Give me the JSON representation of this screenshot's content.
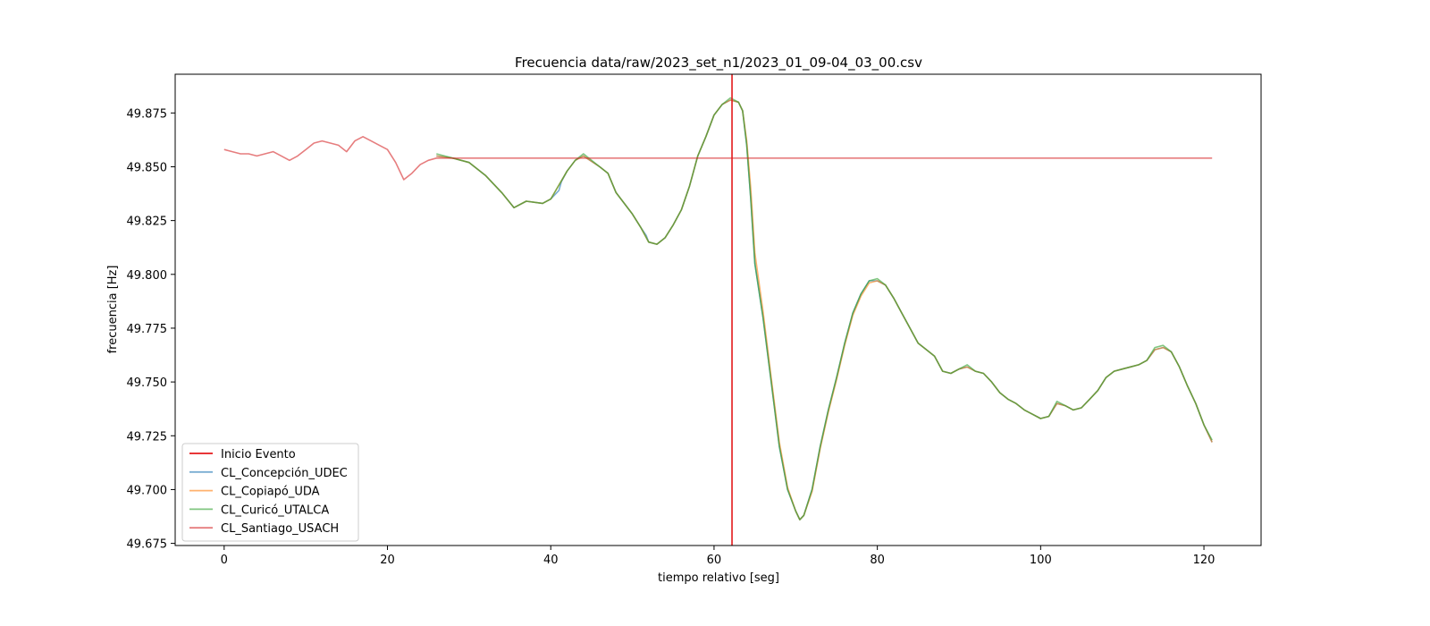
{
  "chart_data": {
    "type": "line",
    "title": "Frecuencia data/raw/2023_set_n1/2023_01_09-04_03_00.csv",
    "xlabel": "tiempo relativo [seg]",
    "ylabel": "frecuencia [Hz]",
    "xlim": [
      -6,
      127
    ],
    "ylim": [
      49.674,
      49.893
    ],
    "xticks": [
      0,
      20,
      40,
      60,
      80,
      100,
      120
    ],
    "yticks": [
      49.675,
      49.7,
      49.725,
      49.75,
      49.775,
      49.8,
      49.825,
      49.85,
      49.875
    ],
    "xtick_labels": [
      "0",
      "20",
      "40",
      "60",
      "80",
      "100",
      "120"
    ],
    "ytick_labels": [
      "49.675",
      "49.700",
      "49.725",
      "49.750",
      "49.775",
      "49.800",
      "49.825",
      "49.850",
      "49.875"
    ],
    "grid": false,
    "legend_position": "lower-left",
    "event": {
      "name": "Inicio Evento",
      "x": 62.2,
      "color": "#e41a1c"
    },
    "series": [
      {
        "name": "CL_Concepción_UDEC",
        "color": "#1f77b4",
        "x": [
          26,
          28,
          30,
          32,
          34,
          35.5,
          37,
          39,
          40,
          41,
          41.3,
          42,
          43,
          44,
          46,
          47,
          48,
          50,
          51,
          51.7,
          52,
          53,
          54,
          55,
          56,
          57,
          58,
          59,
          60,
          61,
          62,
          63,
          63.5,
          64,
          64.5,
          65,
          66,
          67,
          68,
          69,
          70,
          70.5,
          71,
          72,
          73,
          74,
          75,
          76,
          77,
          78,
          79,
          80,
          81,
          82,
          83,
          84,
          85,
          86,
          87,
          88,
          89,
          90,
          91,
          92,
          93,
          94,
          95,
          96,
          97,
          98,
          99,
          100,
          101,
          102,
          103,
          104,
          105,
          106,
          107,
          108,
          109,
          110,
          111,
          112,
          113,
          114,
          115,
          116,
          117,
          118,
          119,
          120,
          121
        ],
        "y": [
          49.855,
          49.854,
          49.852,
          49.846,
          49.838,
          49.831,
          49.834,
          49.833,
          49.835,
          49.839,
          49.843,
          49.848,
          49.853,
          49.855,
          49.85,
          49.847,
          49.838,
          49.828,
          49.822,
          49.818,
          49.815,
          49.814,
          49.817,
          49.823,
          49.83,
          49.841,
          49.855,
          49.864,
          49.874,
          49.879,
          49.881,
          49.88,
          49.876,
          49.86,
          49.835,
          49.805,
          49.78,
          49.75,
          49.72,
          49.7,
          49.69,
          49.686,
          49.688,
          49.7,
          49.72,
          49.737,
          49.752,
          49.768,
          49.782,
          49.791,
          49.797,
          49.797,
          49.795,
          49.789,
          49.782,
          49.775,
          49.768,
          49.765,
          49.762,
          49.755,
          49.754,
          49.756,
          49.757,
          49.755,
          49.754,
          49.75,
          49.745,
          49.742,
          49.74,
          49.737,
          49.735,
          49.733,
          49.734,
          49.74,
          49.739,
          49.737,
          49.738,
          49.742,
          49.746,
          49.752,
          49.755,
          49.756,
          49.757,
          49.758,
          49.76,
          49.765,
          49.766,
          49.764,
          49.757,
          49.748,
          49.74,
          49.73,
          49.722
        ]
      },
      {
        "name": "CL_Copiapó_UDA",
        "color": "#ff7f0e",
        "x": [
          26,
          28,
          30,
          32,
          34,
          35.5,
          37,
          39,
          40,
          42,
          43,
          44,
          46,
          47,
          48,
          50,
          51,
          52,
          53,
          54,
          55,
          56,
          57,
          58,
          59,
          60,
          61,
          62,
          63,
          63.5,
          64,
          64.5,
          65,
          66,
          67,
          68,
          69,
          70,
          70.5,
          71,
          72,
          73,
          74,
          75,
          76,
          77,
          78,
          79,
          80,
          81,
          82,
          83,
          84,
          85,
          86,
          87,
          88,
          89,
          90,
          91,
          92,
          93,
          94,
          95,
          96,
          97,
          98,
          99,
          100,
          101,
          102,
          103,
          104,
          105,
          106,
          107,
          108,
          109,
          110,
          111,
          112,
          113,
          114,
          115,
          116,
          117,
          118,
          119,
          120,
          121
        ],
        "y": [
          49.855,
          49.854,
          49.852,
          49.846,
          49.838,
          49.831,
          49.834,
          49.833,
          49.835,
          49.848,
          49.853,
          49.855,
          49.85,
          49.847,
          49.838,
          49.828,
          49.822,
          49.815,
          49.814,
          49.817,
          49.823,
          49.83,
          49.841,
          49.855,
          49.864,
          49.874,
          49.879,
          49.881,
          49.88,
          49.876,
          49.862,
          49.84,
          49.81,
          49.783,
          49.752,
          49.722,
          49.701,
          49.69,
          49.686,
          49.688,
          49.699,
          49.719,
          49.736,
          49.751,
          49.767,
          49.781,
          49.79,
          49.796,
          49.797,
          49.795,
          49.789,
          49.782,
          49.775,
          49.768,
          49.765,
          49.762,
          49.755,
          49.754,
          49.756,
          49.757,
          49.755,
          49.754,
          49.75,
          49.745,
          49.742,
          49.74,
          49.737,
          49.735,
          49.733,
          49.734,
          49.74,
          49.739,
          49.737,
          49.738,
          49.742,
          49.746,
          49.752,
          49.755,
          49.756,
          49.757,
          49.758,
          49.76,
          49.765,
          49.766,
          49.764,
          49.757,
          49.748,
          49.74,
          49.73,
          49.722
        ]
      },
      {
        "name": "CL_Curicó_UTALCA",
        "color": "#2ca02c",
        "x": [
          26,
          28,
          30,
          32,
          34,
          35.5,
          37,
          39,
          40,
          42,
          43,
          44,
          46,
          47,
          48,
          50,
          51,
          52,
          53,
          54,
          55,
          56,
          57,
          58,
          59,
          60,
          61,
          62,
          63,
          63.5,
          64,
          64.5,
          65,
          66,
          67,
          68,
          69,
          70,
          70.5,
          71,
          72,
          73,
          74,
          75,
          76,
          77,
          78,
          79,
          80,
          81,
          82,
          83,
          84,
          85,
          86,
          87,
          88,
          89,
          90,
          91,
          92,
          93,
          94,
          95,
          96,
          97,
          98,
          99,
          100,
          101,
          102,
          103,
          104,
          105,
          106,
          107,
          108,
          109,
          110,
          111,
          112,
          113,
          114,
          115,
          116,
          117,
          118,
          119,
          120,
          121
        ],
        "y": [
          49.856,
          49.854,
          49.852,
          49.846,
          49.838,
          49.831,
          49.834,
          49.833,
          49.835,
          49.848,
          49.853,
          49.856,
          49.85,
          49.847,
          49.838,
          49.828,
          49.822,
          49.815,
          49.814,
          49.817,
          49.823,
          49.83,
          49.841,
          49.855,
          49.864,
          49.874,
          49.879,
          49.882,
          49.88,
          49.876,
          49.86,
          49.835,
          49.805,
          49.78,
          49.75,
          49.72,
          49.7,
          49.69,
          49.686,
          49.688,
          49.7,
          49.72,
          49.737,
          49.752,
          49.768,
          49.782,
          49.791,
          49.797,
          49.798,
          49.795,
          49.789,
          49.782,
          49.775,
          49.768,
          49.765,
          49.762,
          49.755,
          49.754,
          49.756,
          49.758,
          49.755,
          49.754,
          49.75,
          49.745,
          49.742,
          49.74,
          49.737,
          49.735,
          49.733,
          49.734,
          49.741,
          49.739,
          49.737,
          49.738,
          49.742,
          49.746,
          49.752,
          49.755,
          49.756,
          49.757,
          49.758,
          49.76,
          49.766,
          49.767,
          49.764,
          49.757,
          49.748,
          49.74,
          49.73,
          49.723
        ]
      },
      {
        "name": "CL_Santiago_USACH",
        "color": "#d62728",
        "x": [
          0,
          1,
          2,
          3,
          4,
          5,
          6,
          7,
          8,
          9,
          10,
          11,
          12,
          13,
          14,
          15,
          16,
          17,
          18,
          19,
          20,
          21,
          22,
          23,
          24,
          25,
          26,
          27,
          28,
          28.5,
          121
        ],
        "y": [
          49.858,
          49.857,
          49.856,
          49.856,
          49.855,
          49.856,
          49.857,
          49.855,
          49.853,
          49.855,
          49.858,
          49.861,
          49.862,
          49.861,
          49.86,
          49.857,
          49.862,
          49.864,
          49.862,
          49.86,
          49.858,
          49.852,
          49.844,
          49.847,
          49.851,
          49.853,
          49.854,
          49.854,
          49.854,
          49.854,
          49.854
        ]
      }
    ]
  }
}
